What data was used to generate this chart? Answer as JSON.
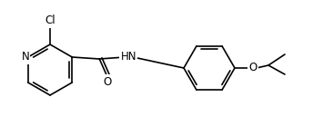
{
  "background_color": "#ffffff",
  "bond_color": "#000000",
  "line_width": 1.2,
  "font_size": 8.5,
  "label_N": "N",
  "label_Cl": "Cl",
  "label_O_amide": "O",
  "label_HN": "HN",
  "label_O_ether": "O"
}
